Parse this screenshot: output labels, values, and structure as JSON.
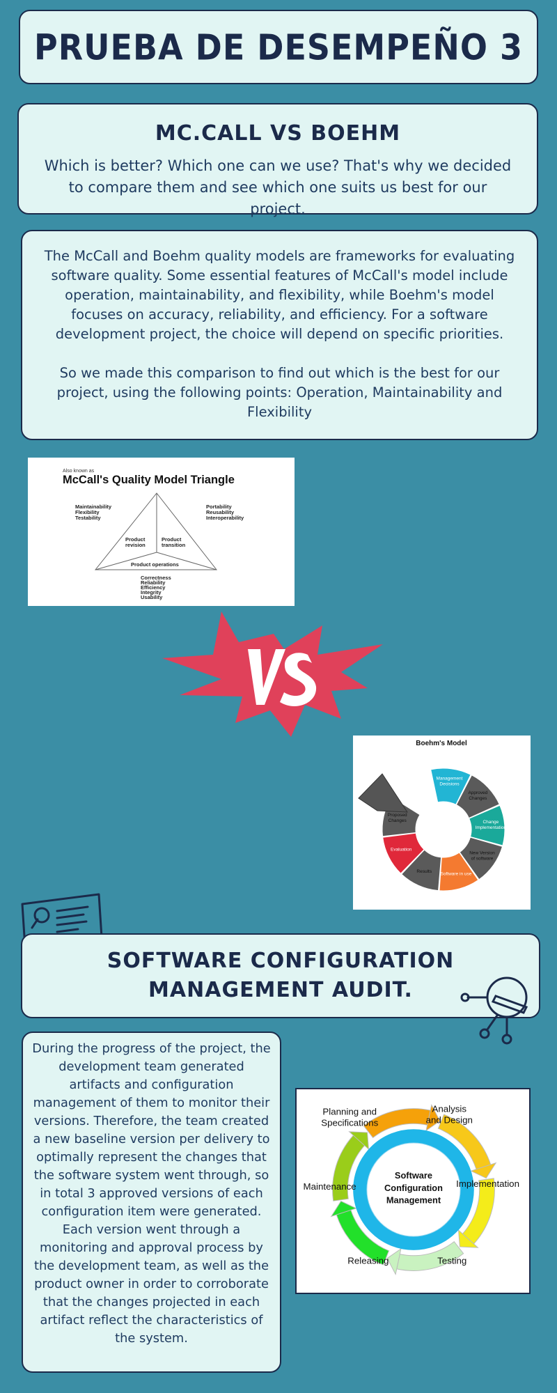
{
  "header": {
    "title": "PRUEBA DE DESEMPEÑO 3"
  },
  "intro": {
    "heading": "MC.CALL VS BOEHM",
    "text": "Which is better? Which one can we use? That's why we decided to compare them and see which one suits us best for our project."
  },
  "description": {
    "p1": "The McCall and Boehm quality models are frameworks for evaluating software quality. Some essential features of McCall's model include operation, maintainability, and flexibility, while Boehm's model focuses on accuracy, reliability, and efficiency. For a software development project, the choice will depend on specific priorities.",
    "p2": "So we made this comparison to find out which is the best for our project, using the following points: Operation, Maintainability and Flexibility"
  },
  "mccall": {
    "aka": "Also known as",
    "title": "McCall's Quality Model Triangle",
    "left": [
      "Maintainability",
      "Flexibility",
      "Testability"
    ],
    "right": [
      "Portability",
      "Reusability",
      "Interoperability"
    ],
    "revision": [
      "Product",
      "revision"
    ],
    "transition": [
      "Product",
      "transition"
    ],
    "operations": "Product operations",
    "bottom": [
      "Correctness",
      "Reliability",
      "Efficiency",
      "Integrity",
      "Usability"
    ]
  },
  "vs": {
    "label": "VS"
  },
  "boehm": {
    "title": "Boehm's Model",
    "segments": [
      {
        "label": [
          "Management",
          "Decisions"
        ],
        "color": "#22b5d4"
      },
      {
        "label": [
          "Approved",
          "Changes"
        ],
        "color": "#5a5a5a"
      },
      {
        "label": [
          "Change",
          "Implementation"
        ],
        "color": "#1aa99a"
      },
      {
        "label": [
          "New Version",
          "of software"
        ],
        "color": "#5a5a5a"
      },
      {
        "label": [
          "Software in use"
        ],
        "color": "#f47a30"
      },
      {
        "label": [
          "Results"
        ],
        "color": "#5a5a5a"
      },
      {
        "label": [
          "Evaluation"
        ],
        "color": "#e0283a"
      },
      {
        "label": [
          "Proposed",
          "Changes"
        ],
        "color": "#5a5a5a"
      }
    ]
  },
  "scm_section": {
    "heading": "SOFTWARE CONFIGURATION MANAGEMENT AUDIT."
  },
  "audit": {
    "text": "During the progress of the project, the development team generated artifacts and configuration management of them to monitor their versions. Therefore, the team created a new baseline version per delivery to optimally represent the changes that the software system went through, so in total 3 approved versions of each configuration item were generated. Each version went through a monitoring and approval process by the development team, as well as the product owner in order to corroborate that the changes projected in each artifact reflect the characteristics of the system."
  },
  "scm_diagram": {
    "center": [
      "Software",
      "Configuration",
      "Management"
    ],
    "stages": [
      {
        "label": [
          "Planning and",
          "Specifications"
        ],
        "color": "#f5a10a"
      },
      {
        "label": [
          "Analysis",
          "and Design"
        ],
        "color": "#f7c81a"
      },
      {
        "label": [
          "Implementation"
        ],
        "color": "#f4ec1a"
      },
      {
        "label": [
          "Testing"
        ],
        "color": "#c9f2c0"
      },
      {
        "label": [
          "Releasing"
        ],
        "color": "#22e02a"
      },
      {
        "label": [
          "Maintenance"
        ],
        "color": "#9acd1a"
      }
    ]
  }
}
